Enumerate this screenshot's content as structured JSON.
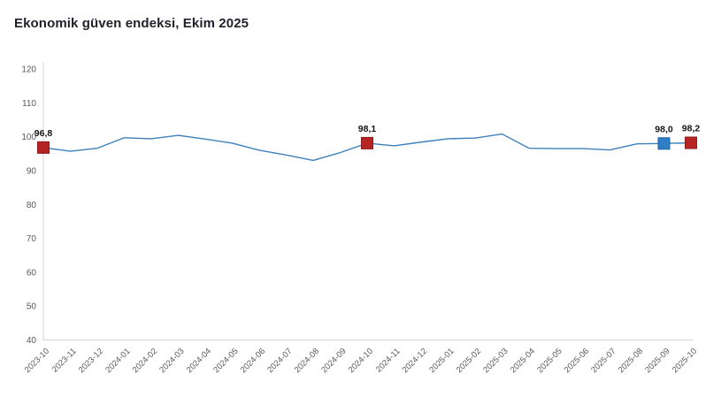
{
  "title": "Ekonomik güven endeksi, Ekim 2025",
  "colors": {
    "line": "#3e80ba",
    "marker_red_fill": "#b42524",
    "marker_red_border": "#8e1a1a",
    "marker_blue_fill": "#2f7ec7",
    "marker_blue_border": "#1d62a5",
    "axis_line": "#d6d6d6",
    "axis_text": "#5a5a5a",
    "point_label_text": "#141414",
    "title_text": "#1d222b"
  },
  "chart_data": {
    "type": "line",
    "title": "Ekonomik güven endeksi, Ekim 2025",
    "x": [
      "2023-10",
      "2023-11",
      "2023-12",
      "2024-01",
      "2024-02",
      "2024-03",
      "2024-04",
      "2024-05",
      "2024-06",
      "2024-07",
      "2024-08",
      "2024-09",
      "2024-10",
      "2024-11",
      "2024-12",
      "2025-01",
      "2025-02",
      "2025-03",
      "2025-04",
      "2025-05",
      "2025-06",
      "2025-07",
      "2025-08",
      "2025-09",
      "2025-10"
    ],
    "values": [
      96.8,
      95.7,
      96.6,
      99.7,
      99.4,
      100.4,
      99.3,
      98.1,
      96.0,
      94.6,
      93.0,
      95.3,
      98.1,
      97.3,
      98.4,
      99.4,
      99.6,
      100.8,
      96.6,
      96.5,
      96.5,
      96.1,
      97.9,
      98.0,
      98.2
    ],
    "ylim": [
      40,
      120
    ],
    "yticks": [
      120,
      110,
      100,
      90,
      80,
      70,
      60,
      50,
      40
    ],
    "grid": false,
    "legend_position": "none",
    "xlabel": "",
    "ylabel": "",
    "labeled_points": [
      {
        "index": 0,
        "x": "2023-10",
        "value": 96.8,
        "label": "96,8",
        "marker": "red"
      },
      {
        "index": 12,
        "x": "2024-10",
        "value": 98.1,
        "label": "98,1",
        "marker": "red"
      },
      {
        "index": 23,
        "x": "2025-09",
        "value": 98.0,
        "label": "98,0",
        "marker": "blue"
      },
      {
        "index": 24,
        "x": "2025-10",
        "value": 98.2,
        "label": "98,2",
        "marker": "red"
      }
    ]
  }
}
